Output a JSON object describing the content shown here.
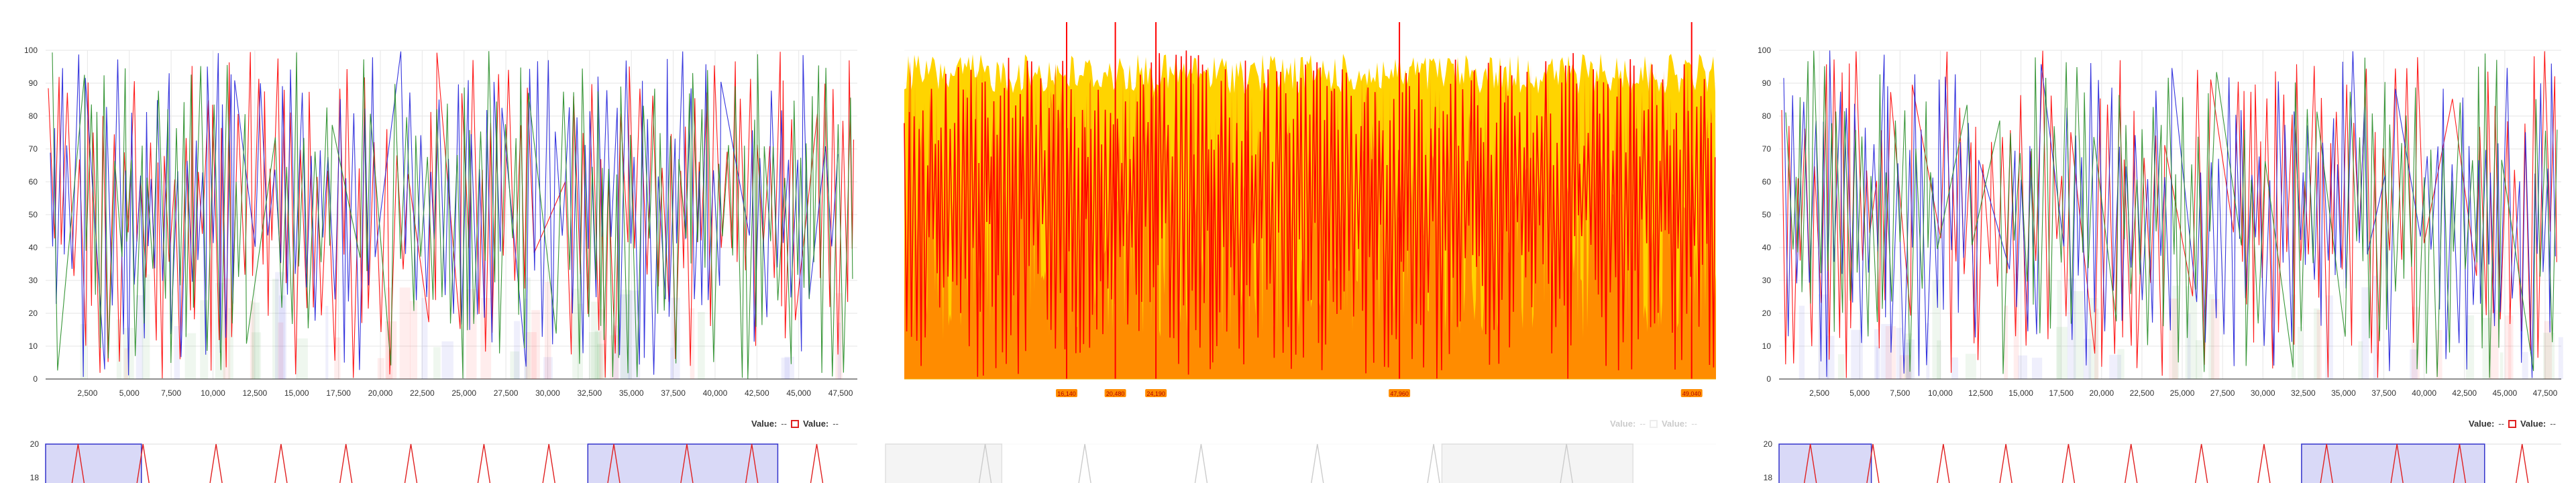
{
  "colors": {
    "red": "#ff0000",
    "blue": "#1f1fd9",
    "green": "#228b22",
    "orange": "#ff8c00",
    "yellow": "#ffd400",
    "grid": "#e6e6e6",
    "axis": "#222222",
    "navigator_fill": "#d9d9f7",
    "navigator_border": "#3333cc"
  },
  "legend": {
    "value_label": "Value:",
    "value_text": "--",
    "value_label_2": "Value:",
    "value_text_2": "--"
  },
  "chart_data": [
    {
      "type": "line",
      "title": "",
      "ylim": [
        0,
        100
      ],
      "xlim": [
        0,
        48500
      ],
      "y_ticks": [
        0,
        10,
        20,
        30,
        40,
        50,
        60,
        70,
        80,
        90,
        100
      ],
      "x_ticks": [
        2500,
        5000,
        7500,
        10000,
        12500,
        15000,
        17500,
        20000,
        22500,
        25000,
        27500,
        30000,
        32500,
        35000,
        37500,
        40000,
        42500,
        45000,
        47500
      ],
      "x_tick_labels": [
        "2,500",
        "5,000",
        "7,500",
        "10,000",
        "12,500",
        "15,000",
        "17,500",
        "20,000",
        "22,500",
        "25,000",
        "27,500",
        "30,000",
        "32,500",
        "35,000",
        "37,500",
        "40,000",
        "42,500",
        "45,000",
        "47,500"
      ],
      "grid": true,
      "series_colors": [
        "#ff0000",
        "#1f1fd9",
        "#228b22"
      ],
      "legend_placement": "bottom-right"
    },
    {
      "type": "area",
      "title": "",
      "ylim": [
        0,
        100
      ],
      "grid": true,
      "series_colors": [
        "#ff0000",
        "#ff8c00",
        "#ffd400"
      ],
      "marker_labels": [
        "16,140",
        "20,480",
        "24,190",
        "47,960",
        "49,040"
      ]
    },
    {
      "type": "line",
      "title": "",
      "ylim": [
        0,
        100
      ],
      "xlim": [
        0,
        48500
      ],
      "y_ticks": [
        0,
        10,
        20,
        30,
        40,
        50,
        60,
        70,
        80,
        90,
        100
      ],
      "x_ticks": [
        2500,
        5000,
        7500,
        10000,
        12500,
        15000,
        17500,
        20000,
        22500,
        25000,
        27500,
        30000,
        32500,
        35000,
        37500,
        40000,
        42500,
        45000,
        47500
      ],
      "x_tick_labels": [
        "2,500",
        "5,000",
        "7,500",
        "10,000",
        "12,500",
        "15,000",
        "17,500",
        "20,000",
        "22,500",
        "25,000",
        "27,500",
        "30,000",
        "32,500",
        "35,000",
        "37,500",
        "40,000",
        "42,500",
        "45,000",
        "47,500"
      ],
      "grid": true,
      "series_colors": [
        "#ff0000",
        "#1f1fd9",
        "#228b22"
      ],
      "legend_placement": "bottom-right"
    }
  ],
  "navigators": [
    {
      "y_ticks": [
        "20",
        "18"
      ],
      "selections": [
        [
          0.0,
          0.118
        ],
        [
          0.668,
          0.902
        ]
      ],
      "spike_positions": [
        0.04,
        0.12,
        0.21,
        0.29,
        0.37,
        0.45,
        0.54,
        0.62,
        0.7,
        0.79,
        0.87,
        0.95
      ]
    },
    {
      "y_ticks": [],
      "selections": [
        [
          0.0,
          0.14
        ],
        [
          0.67,
          0.9
        ]
      ],
      "spike_positions": [
        0.12,
        0.24,
        0.38,
        0.52,
        0.66,
        0.82
      ]
    },
    {
      "y_ticks": [
        "20",
        "18"
      ],
      "selections": [
        [
          0.0,
          0.118
        ],
        [
          0.668,
          0.902
        ]
      ],
      "spike_positions": [
        0.04,
        0.12,
        0.21,
        0.29,
        0.37,
        0.45,
        0.54,
        0.62,
        0.7,
        0.79,
        0.87,
        0.95
      ]
    }
  ]
}
